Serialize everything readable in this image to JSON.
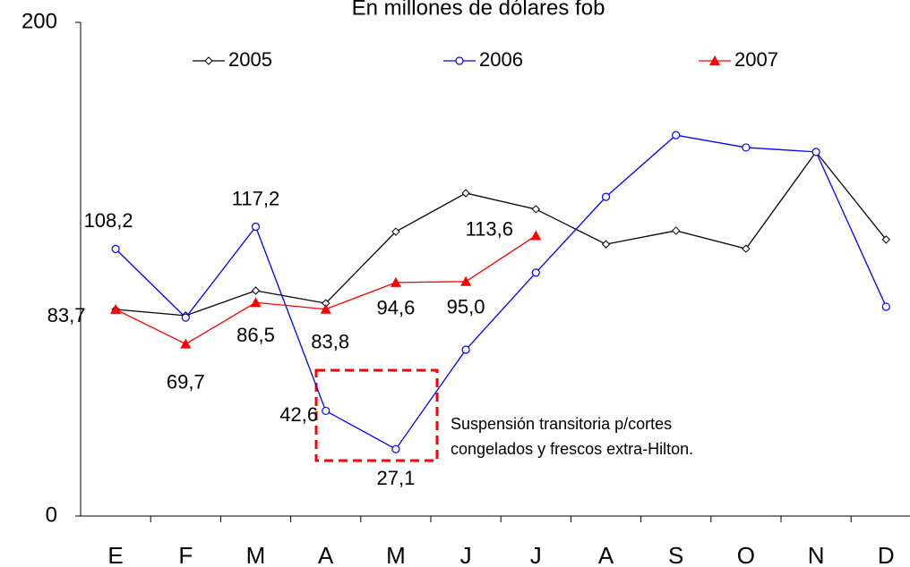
{
  "chart_data": {
    "type": "line",
    "title": "En millones de dólares fob",
    "categories": [
      "E",
      "F",
      "M",
      "A",
      "M",
      "J",
      "J",
      "A",
      "S",
      "O",
      "N",
      "D"
    ],
    "series": [
      {
        "name": "2005",
        "color": "#000000",
        "marker": "diamond",
        "values": [
          83.7,
          81.2,
          91.3,
          86.2,
          115.2,
          130.8,
          124.3,
          110.1,
          115.6,
          108.3,
          147.5,
          112.0
        ]
      },
      {
        "name": "2006",
        "color": "#0000ff",
        "marker": "circle",
        "values": [
          108.2,
          80.4,
          117.2,
          42.6,
          27.1,
          67.4,
          98.6,
          129.3,
          154.3,
          149.3,
          147.5,
          84.8
        ],
        "value_labels": [
          "108,2",
          null,
          "117,2",
          "42,6",
          "27,1",
          null,
          null,
          null,
          null,
          null,
          null,
          null
        ]
      },
      {
        "name": "2007",
        "color": "#ff0000",
        "marker": "triangle",
        "values": [
          83.7,
          69.7,
          86.5,
          83.8,
          94.6,
          95.0,
          113.6,
          null,
          null,
          null,
          null,
          null
        ],
        "value_labels": [
          "83,7",
          "69,7",
          "86,5",
          "83,8",
          "94,6",
          "95,0",
          "113,6",
          null,
          null,
          null,
          null,
          null
        ]
      }
    ],
    "annotations": [
      "Suspensión transitoria p/cortes",
      "congelados y frescos extra-Hilton."
    ],
    "ylim": [
      0,
      200
    ],
    "yticks": [
      0,
      200
    ],
    "grid": false,
    "legend": "top"
  }
}
